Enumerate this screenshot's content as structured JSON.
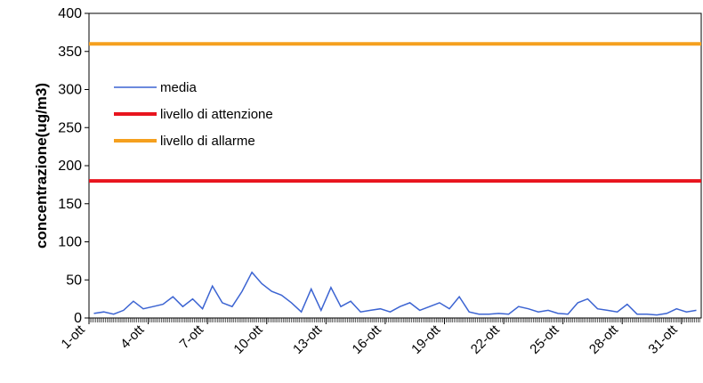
{
  "chart_data": {
    "type": "line",
    "y_label": "concentrazione(ug/m3)",
    "categories": [
      "1-ott",
      null,
      null,
      null,
      null,
      null,
      "4-ott",
      null,
      null,
      null,
      null,
      null,
      "7-ott",
      null,
      null,
      null,
      null,
      null,
      "10-ott",
      null,
      null,
      null,
      null,
      null,
      "13-ott",
      null,
      null,
      null,
      null,
      null,
      "16-ott",
      null,
      null,
      null,
      null,
      null,
      "19-ott",
      null,
      null,
      null,
      null,
      null,
      "22-ott",
      null,
      null,
      null,
      null,
      null,
      "25-ott",
      null,
      null,
      null,
      null,
      null,
      "28-ott",
      null,
      null,
      null,
      null,
      null,
      "31-ott",
      null
    ],
    "series": [
      {
        "name": "media",
        "color": "#3c64d2",
        "values": [
          6,
          8,
          5,
          10,
          22,
          12,
          15,
          18,
          28,
          15,
          25,
          12,
          42,
          20,
          15,
          35,
          60,
          45,
          35,
          30,
          20,
          8,
          38,
          10,
          40,
          15,
          22,
          8,
          10,
          12,
          8,
          15,
          20,
          10,
          15,
          20,
          12,
          28,
          8,
          5,
          5,
          6,
          5,
          15,
          12,
          8,
          10,
          6,
          5,
          20,
          25,
          12,
          10,
          8,
          18,
          5,
          5,
          4,
          6,
          12,
          8,
          10
        ]
      }
    ],
    "reference_lines": [
      {
        "name": "livello di attenzione",
        "color": "#e8141e",
        "value": 180
      },
      {
        "name": "livello di allarme",
        "color": "#f5a01e",
        "value": 360
      }
    ],
    "ylim": [
      0,
      400
    ],
    "yticks": [
      0,
      50,
      100,
      150,
      200,
      250,
      300,
      350,
      400
    ]
  }
}
